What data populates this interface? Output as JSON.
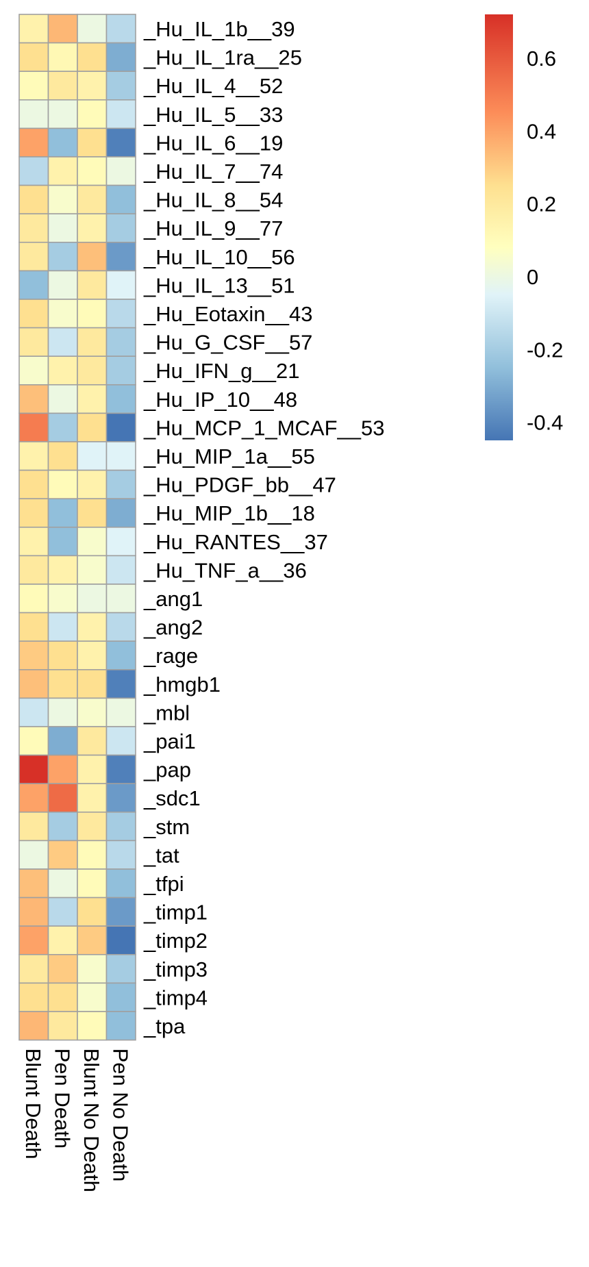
{
  "chart_data": {
    "type": "heatmap",
    "title": "",
    "xlabel": "",
    "ylabel": "",
    "columns": [
      "Blunt Death",
      "Pen Death",
      "Blunt No Death",
      "Pen No Death"
    ],
    "rows": [
      "_Hu_IL_1b__39",
      "_Hu_IL_1ra__25",
      "_Hu_IL_4__52",
      "_Hu_IL_5__33",
      "_Hu_IL_6__19",
      "_Hu_IL_7__74",
      "_Hu_IL_8__54",
      "_Hu_IL_9__77",
      "_Hu_IL_10__56",
      "_Hu_IL_13__51",
      "_Hu_Eotaxin__43",
      "_Hu_G_CSF__57",
      "_Hu_IFN_g__21",
      "_Hu_IP_10__48",
      "_Hu_MCP_1_MCAF__53",
      "_Hu_MIP_1a__55",
      "_Hu_PDGF_bb__47",
      "_Hu_MIP_1b__18",
      "_Hu_RANTES__37",
      "_Hu_TNF_a__36",
      "_ang1",
      "_ang2",
      "_rage",
      "_hmgb1",
      "_mbl",
      "_pai1",
      "_pap",
      "_sdc1",
      "_stm",
      "_tat",
      "_tfpi",
      "_timp1",
      "_timp2",
      "_timp3",
      "_timp4",
      "_tpa"
    ],
    "values": [
      [
        0.15,
        0.35,
        0.0,
        -0.15
      ],
      [
        0.25,
        0.12,
        0.25,
        -0.3
      ],
      [
        0.1,
        0.2,
        0.15,
        -0.2
      ],
      [
        0.0,
        0.0,
        0.1,
        -0.1
      ],
      [
        0.4,
        -0.25,
        0.25,
        -0.42
      ],
      [
        -0.15,
        0.15,
        0.1,
        0.0
      ],
      [
        0.25,
        0.05,
        0.2,
        -0.25
      ],
      [
        0.2,
        0.0,
        0.15,
        -0.2
      ],
      [
        0.2,
        -0.2,
        0.33,
        -0.35
      ],
      [
        -0.25,
        0.0,
        0.2,
        -0.05
      ],
      [
        0.25,
        0.05,
        0.1,
        -0.15
      ],
      [
        0.2,
        -0.1,
        0.2,
        -0.2
      ],
      [
        0.05,
        0.15,
        0.2,
        -0.2
      ],
      [
        0.33,
        0.0,
        0.15,
        -0.25
      ],
      [
        0.5,
        -0.2,
        0.25,
        -0.45
      ],
      [
        0.15,
        0.25,
        -0.05,
        -0.05
      ],
      [
        0.25,
        0.1,
        0.15,
        -0.2
      ],
      [
        0.25,
        -0.25,
        0.25,
        -0.3
      ],
      [
        0.15,
        -0.25,
        0.05,
        -0.05
      ],
      [
        0.2,
        0.15,
        0.05,
        -0.1
      ],
      [
        0.1,
        0.05,
        0.0,
        0.0
      ],
      [
        0.25,
        -0.1,
        0.15,
        -0.15
      ],
      [
        0.3,
        0.25,
        0.15,
        -0.25
      ],
      [
        0.33,
        0.25,
        0.25,
        -0.42
      ],
      [
        -0.1,
        0.0,
        0.05,
        0.0
      ],
      [
        0.1,
        -0.3,
        0.2,
        -0.1
      ],
      [
        0.72,
        0.4,
        0.15,
        -0.42
      ],
      [
        0.4,
        0.55,
        0.15,
        -0.35
      ],
      [
        0.2,
        -0.2,
        0.2,
        -0.2
      ],
      [
        0.0,
        0.3,
        0.1,
        -0.15
      ],
      [
        0.33,
        0.0,
        0.1,
        -0.25
      ],
      [
        0.35,
        -0.15,
        0.25,
        -0.35
      ],
      [
        0.4,
        0.15,
        0.3,
        -0.45
      ],
      [
        0.2,
        0.3,
        0.05,
        -0.2
      ],
      [
        0.25,
        0.25,
        0.05,
        -0.25
      ],
      [
        0.35,
        0.2,
        0.1,
        -0.25
      ]
    ],
    "color_scale": {
      "min": -0.45,
      "max": 0.72,
      "stops": [
        {
          "value": -0.45,
          "color": "#4575b4"
        },
        {
          "value": -0.25,
          "color": "#91bfdb"
        },
        {
          "value": -0.05,
          "color": "#e0f3f8"
        },
        {
          "value": 0.08,
          "color": "#ffffbf"
        },
        {
          "value": 0.25,
          "color": "#fee090"
        },
        {
          "value": 0.45,
          "color": "#fc8d59"
        },
        {
          "value": 0.72,
          "color": "#d73027"
        }
      ]
    },
    "legend": {
      "placement": "top-right",
      "ticks": [
        0.6,
        0.4,
        0.2,
        0,
        -0.2,
        -0.4
      ],
      "tick_labels": [
        "0.6",
        "0.4",
        "0.2",
        "0",
        "-0.2",
        "-0.4"
      ]
    },
    "cell_border_color": "#a0a0a0"
  }
}
